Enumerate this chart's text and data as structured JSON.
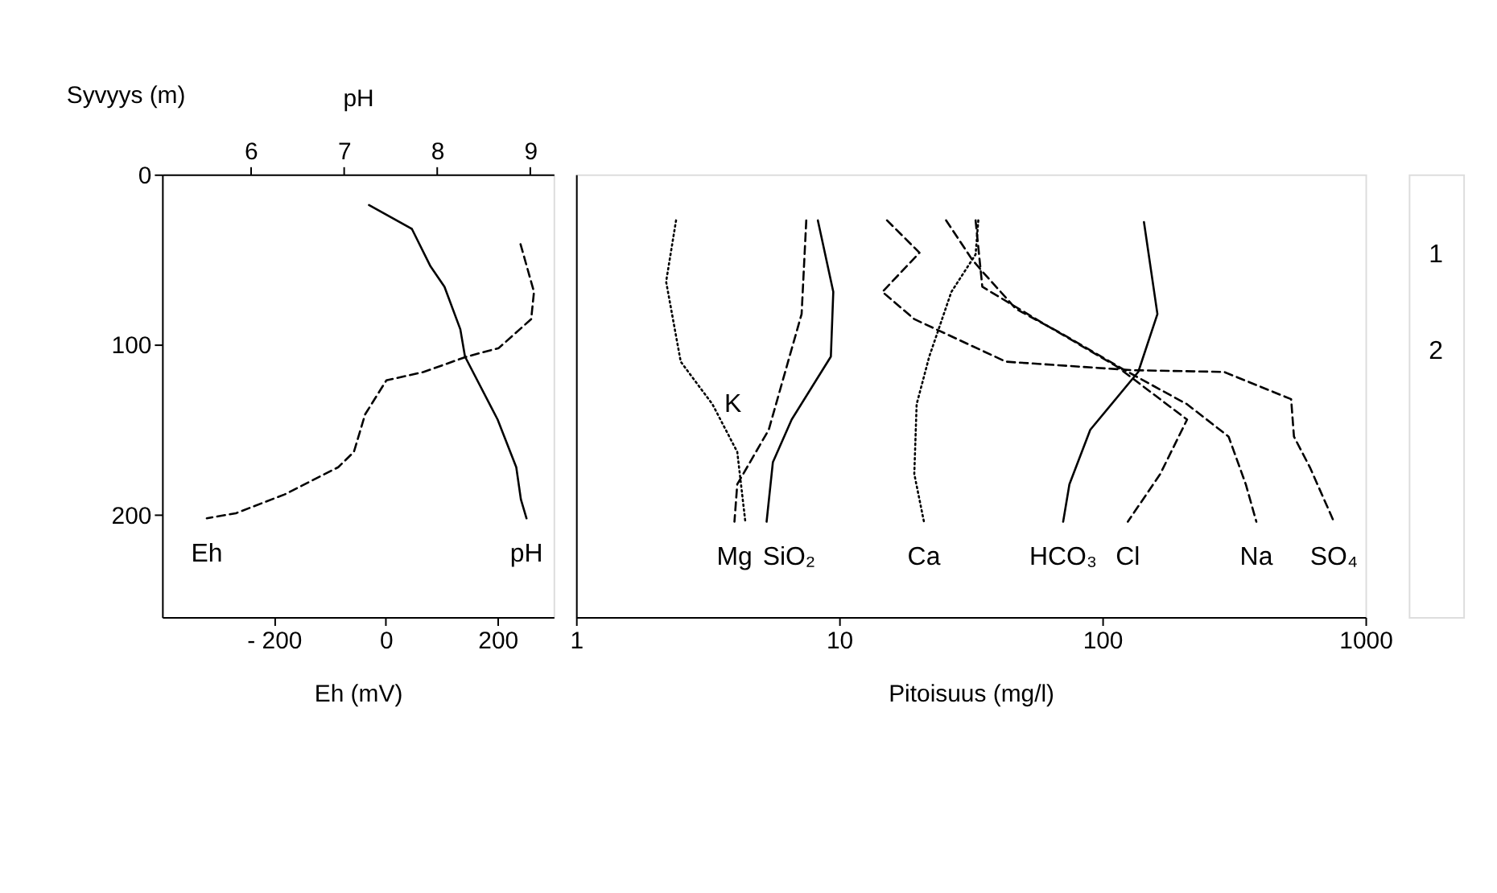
{
  "chart_data": [
    {
      "type": "line",
      "xlabel": "Eh (mV)",
      "x2label": "pH",
      "ylabel": "Syvyys (m)",
      "xlim": [
        -400,
        300
      ],
      "xticks": [
        {
          "value": -200,
          "label": "- 200"
        },
        0,
        200
      ],
      "x2lim": [
        5.05,
        9.25
      ],
      "x2ticks": [
        6,
        7,
        8,
        9
      ],
      "ylim": [
        260,
        0
      ],
      "yticks": [
        0,
        100,
        200
      ],
      "grid": false,
      "series": [
        {
          "name": "Eh",
          "color": "#000000",
          "line_style": "dashed",
          "x": [
            241,
            265,
            260,
            202,
            145,
            68,
            1,
            -37,
            -57,
            -85,
            -181,
            -268,
            -320
          ],
          "values": [
            41,
            69,
            85,
            102,
            107,
            116,
            121,
            141,
            163,
            172,
            188,
            199,
            202
          ]
        },
        {
          "name": "pH",
          "color": "#000000",
          "line_style": "solid",
          "axis": "x2",
          "x": [
            7.27,
            7.73,
            7.93,
            8.08,
            8.25,
            8.3,
            8.65,
            8.85,
            8.9,
            8.96
          ],
          "values": [
            18,
            32,
            54,
            66,
            91,
            107,
            144,
            172,
            191,
            202
          ]
        }
      ]
    },
    {
      "type": "line",
      "xlabel": "Pitoisuus (mg/l)",
      "xlim": [
        1,
        1000
      ],
      "xticks": [
        1,
        10,
        100,
        {
          "value": 1000,
          "label": "1000"
        }
      ],
      "log": "x",
      "ylim": [
        260,
        0
      ],
      "yticks": [
        0,
        100,
        200
      ],
      "tick_labels": "x",
      "grid": false,
      "series": [
        {
          "name": "Mg",
          "color": "#000000",
          "line_style": "dashed",
          "x": [
            7.5,
            7.2,
            5.4,
            4.1,
            4.0
          ],
          "values": [
            27,
            82,
            150,
            182,
            204
          ]
        },
        {
          "name": "SiO₂",
          "color": "#000000",
          "line_style": "solid",
          "x": [
            8.3,
            9.5,
            9.3,
            6.6,
            5.6,
            5.3
          ],
          "values": [
            27,
            69,
            107,
            144,
            169,
            204
          ]
        },
        {
          "name": "K",
          "color": "#000000",
          "line_style": "dotted",
          "x": [
            2.4,
            2.2,
            2.5,
            3.3,
            4.1,
            4.4
          ],
          "values": [
            27,
            63,
            110,
            135,
            163,
            204
          ]
        },
        {
          "name": "Ca",
          "color": "#000000",
          "line_style": "dotted",
          "x": [
            33.8,
            33,
            26.7,
            22,
            19.7,
            19.3,
            21
          ],
          "values": [
            27,
            47,
            69,
            107,
            135,
            176,
            204
          ]
        },
        {
          "name": "HCO₃",
          "color": "#000000",
          "line_style": "solid",
          "x": [
            144,
            162,
            137,
            90,
            75,
            71
          ],
          "values": [
            28,
            82,
            116,
            150,
            182,
            204
          ]
        },
        {
          "name": "Cl",
          "color": "#000000",
          "line_style": "dashed",
          "x": [
            33,
            35,
            56,
            114,
            210,
            166,
            125
          ],
          "values": [
            27,
            66,
            85,
            113,
            144,
            176,
            204
          ]
        },
        {
          "name": "Na",
          "color": "#000000",
          "line_style": "dashed",
          "x": [
            25.5,
            32,
            35,
            47,
            71,
            125,
            210,
            302,
            351,
            385
          ],
          "values": [
            27,
            50,
            57,
            79,
            94,
            116,
            135,
            154,
            182,
            204
          ]
        },
        {
          "name": "SO₄",
          "color": "#000000",
          "line_style": "dashed",
          "x": [
            15.2,
            20.2,
            14.6,
            19.3,
            43,
            130,
            290,
            522,
            535,
            615,
            759
          ],
          "values": [
            27,
            46,
            69,
            85,
            110,
            115,
            116,
            132,
            154,
            172,
            204
          ]
        }
      ],
      "annotations": [
        "1",
        "2"
      ]
    }
  ]
}
